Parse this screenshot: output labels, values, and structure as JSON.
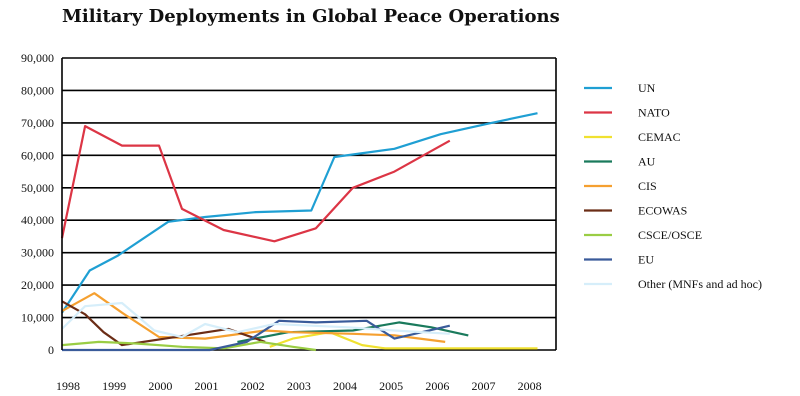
{
  "chart_data": {
    "type": "line",
    "title": "Military Deployments in Global  Peace Operations",
    "xlabel": "",
    "ylabel": "",
    "x": [
      1998,
      1999,
      2000,
      2001,
      2002,
      2003,
      2004,
      2005,
      2006,
      2007,
      2008
    ],
    "x_tick_labels": [
      "1998",
      "1999",
      "2000",
      "2001",
      "2002",
      "2003",
      "2004",
      "2005",
      "2006",
      "2007",
      "2008"
    ],
    "y_tick_labels": [
      "0",
      "10,000",
      "20,000",
      "30,000",
      "40,000",
      "50,000",
      "60,000",
      "70,000",
      "80,000",
      "90,000"
    ],
    "ylim": [
      0,
      90000
    ],
    "grid": "horizontal",
    "legend_position": "right",
    "series": [
      {
        "name": "UN",
        "color": "#1f9fd3",
        "points": [
          [
            1998,
            11500
          ],
          [
            1998.6,
            24500
          ],
          [
            1999.2,
            29000
          ],
          [
            2000.3,
            39500
          ],
          [
            2001.1,
            41000
          ],
          [
            2002.2,
            42500
          ],
          [
            2003.4,
            43000
          ],
          [
            2003.9,
            59500
          ],
          [
            2005.2,
            62000
          ],
          [
            2006.2,
            66500
          ],
          [
            2007.3,
            70000
          ],
          [
            2008.3,
            73000
          ]
        ]
      },
      {
        "name": "NATO",
        "color": "#dc3545",
        "points": [
          [
            1998,
            34500
          ],
          [
            1998.5,
            69000
          ],
          [
            1999.3,
            63000
          ],
          [
            2000.1,
            63000
          ],
          [
            2000.6,
            43500
          ],
          [
            2001.5,
            37000
          ],
          [
            2002.6,
            33500
          ],
          [
            2003.5,
            37500
          ],
          [
            2004.3,
            50000
          ],
          [
            2005.2,
            55000
          ],
          [
            2006.4,
            64500
          ]
        ]
      },
      {
        "name": "CEMAC",
        "color": "#f0e130",
        "points": [
          [
            2002.5,
            1000
          ],
          [
            2003.0,
            3500
          ],
          [
            2003.8,
            5500
          ],
          [
            2004.5,
            1500
          ],
          [
            2005.0,
            500
          ],
          [
            2006.5,
            500
          ],
          [
            2008.3,
            500
          ]
        ]
      },
      {
        "name": "AU",
        "color": "#1a7a5c",
        "points": [
          [
            2001.8,
            2500
          ],
          [
            2002.9,
            5500
          ],
          [
            2004.3,
            6000
          ],
          [
            2005.3,
            8500
          ],
          [
            2006.0,
            7000
          ],
          [
            2006.8,
            4500
          ]
        ]
      },
      {
        "name": "CIS",
        "color": "#f5a030",
        "points": [
          [
            1998,
            12000
          ],
          [
            1998.7,
            17500
          ],
          [
            1999.3,
            11500
          ],
          [
            2000.1,
            4000
          ],
          [
            2001.1,
            3500
          ],
          [
            2002.4,
            6000
          ],
          [
            2003.0,
            5500
          ],
          [
            2004.3,
            5000
          ],
          [
            2005.2,
            4500
          ],
          [
            2006.3,
            2500
          ]
        ]
      },
      {
        "name": "ECOWAS",
        "color": "#6b2d16",
        "points": [
          [
            1998,
            15000
          ],
          [
            1998.5,
            11000
          ],
          [
            1998.9,
            5500
          ],
          [
            1999.3,
            1500
          ],
          [
            2001.6,
            6500
          ],
          [
            2002.4,
            2500
          ]
        ]
      },
      {
        "name": "CSCE/OSCE",
        "color": "#9acd44",
        "points": [
          [
            1998,
            1500
          ],
          [
            1998.8,
            2500
          ],
          [
            1999.6,
            2000
          ],
          [
            2000.6,
            1000
          ],
          [
            2001.5,
            500
          ],
          [
            2002.3,
            2500
          ],
          [
            2003.0,
            1000
          ],
          [
            2003.5,
            0
          ]
        ]
      },
      {
        "name": "EU",
        "color": "#3a5b9a",
        "points": [
          [
            1998,
            0
          ],
          [
            2001.2,
            0
          ],
          [
            2002.0,
            2500
          ],
          [
            2002.7,
            9000
          ],
          [
            2003.5,
            8500
          ],
          [
            2004.6,
            9000
          ],
          [
            2005.2,
            3500
          ],
          [
            2006.4,
            7500
          ]
        ]
      },
      {
        "name": "Other (MNFs and ad hoc)",
        "color": "#d6eefa",
        "points": [
          [
            1998,
            6500
          ],
          [
            1998.5,
            13500
          ],
          [
            1999.3,
            14500
          ],
          [
            2000.0,
            6000
          ],
          [
            2000.6,
            4000
          ],
          [
            2001.1,
            8000
          ],
          [
            2001.8,
            5500
          ],
          [
            2002.6,
            8000
          ],
          [
            2003.4,
            7500
          ],
          [
            2004.2,
            7000
          ],
          [
            2005.2,
            6000
          ],
          [
            2006.4,
            5000
          ]
        ]
      }
    ]
  }
}
